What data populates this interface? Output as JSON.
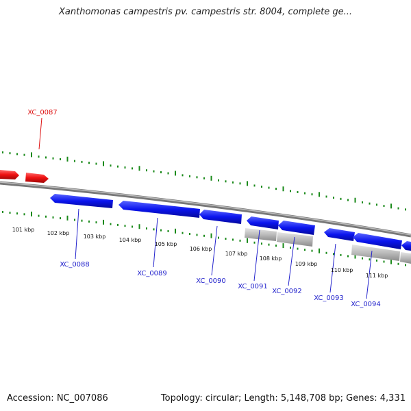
{
  "title": "Xanthomonas campestris pv. campestris str. 8004, complete ge...",
  "footer": {
    "accession": "Accession: NC_007086",
    "stats": "Topology: circular; Length: 5,148,708 bp; Genes: 4,331"
  },
  "colors": {
    "forward_gene": "#ee1111",
    "reverse_gene": "#0a14ee",
    "pseudo_feature": "#bbbbbb",
    "tick": "#1a8a1a",
    "backbone": "#888888",
    "reverse_label": "#2222cc",
    "forward_label": "#dd1111"
  },
  "kbp_labels": [
    "101 kbp",
    "102 kbp",
    "103 kbp",
    "104 kbp",
    "105 kbp",
    "106 kbp",
    "107 kbp",
    "108 kbp",
    "109 kbp",
    "110 kbp",
    "111 kbp"
  ],
  "forward_genes": [
    {
      "label": "XC_0087"
    }
  ],
  "reverse_gene_labels": [
    {
      "label": "XC_0088"
    },
    {
      "label": "XC_0089"
    },
    {
      "label": "XC_0090"
    },
    {
      "label": "XC_0091"
    },
    {
      "label": "XC_0092"
    },
    {
      "label": "XC_0093"
    },
    {
      "label": "XC_0094"
    }
  ]
}
